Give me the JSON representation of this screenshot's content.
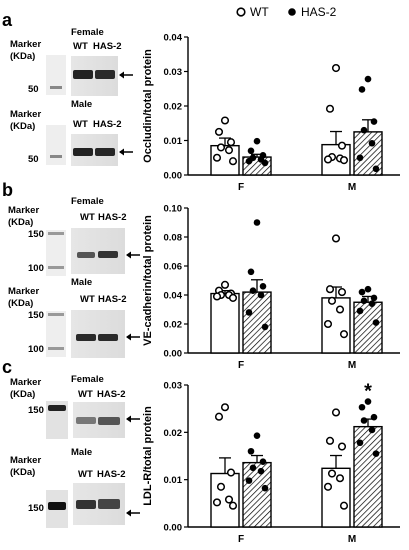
{
  "legend": {
    "items": [
      {
        "label": "WT",
        "marker": "open-circle"
      },
      {
        "label": "HAS-2",
        "marker": "filled-circle"
      }
    ]
  },
  "panels": [
    {
      "letter": "a",
      "blots": [
        {
          "group": "Female",
          "marker_label": [
            "Marker",
            "(KDa)"
          ],
          "marker_value": "50",
          "lanes": [
            "WT",
            "HAS-2"
          ]
        },
        {
          "group": "Male",
          "marker_label": [
            "Marker",
            "(KDa)"
          ],
          "marker_value": "50",
          "lanes": [
            "WT",
            "HAS-2"
          ]
        }
      ]
    },
    {
      "letter": "b",
      "blots": [
        {
          "group": "Female",
          "marker_label": [
            "Marker",
            "(KDa)"
          ],
          "marker_values": [
            "150",
            "100"
          ],
          "lanes": [
            "WT",
            "HAS-2"
          ]
        },
        {
          "group": "Male",
          "marker_label": [
            "Marker",
            "(KDa)"
          ],
          "marker_values": [
            "150",
            "100"
          ],
          "lanes": [
            "WT",
            "HAS-2"
          ]
        }
      ]
    },
    {
      "letter": "c",
      "blots": [
        {
          "group": "Female",
          "marker_label": [
            "Marker",
            "(KDa)"
          ],
          "marker_value": "150",
          "lanes": [
            "WT",
            "HAS-2"
          ]
        },
        {
          "group": "Male",
          "marker_label": [
            "Marker",
            "(KDa)"
          ],
          "marker_value": "150",
          "lanes": [
            "WT",
            "HAS-2"
          ]
        }
      ]
    }
  ],
  "chart_data": [
    {
      "type": "bar",
      "panel": "a",
      "ylabel": "Occludin/total protein",
      "ylim": [
        0,
        0.04
      ],
      "yticks": [
        "0.00",
        "0.01",
        "0.02",
        "0.03",
        "0.04"
      ],
      "categories": [
        "F",
        "M"
      ],
      "series": [
        {
          "name": "WT",
          "values": [
            0.0085,
            0.0088
          ],
          "sem": [
            0.0022,
            0.0038
          ],
          "points": [
            [
              0.0158,
              0.0125,
              0.0095,
              0.008,
              0.0072,
              0.005,
              0.004
            ],
            [
              0.031,
              0.0192,
              0.0085,
              0.0052,
              0.0048,
              0.0045,
              0.0043
            ]
          ]
        },
        {
          "name": "HAS-2",
          "values": [
            0.0052,
            0.0125
          ],
          "sem": [
            0.0008,
            0.0035
          ],
          "points": [
            [
              0.0098,
              0.007,
              0.0057,
              0.005,
              0.0045,
              0.004,
              0.0035
            ],
            [
              0.0278,
              0.0248,
              0.0155,
              0.013,
              0.0092,
              0.005,
              0.0018
            ]
          ]
        }
      ],
      "annotations": []
    },
    {
      "type": "bar",
      "panel": "b",
      "ylabel": "VE-cadherin/total protein",
      "ylim": [
        0,
        0.1
      ],
      "yticks": [
        "0.00",
        "0.02",
        "0.04",
        "0.06",
        "0.08",
        "0.10"
      ],
      "categories": [
        "F",
        "M"
      ],
      "series": [
        {
          "name": "WT",
          "values": [
            0.041,
            0.038
          ],
          "sem": [
            0.002,
            0.0075
          ],
          "points": [
            [
              0.047,
              0.043,
              0.041,
              0.04,
              0.04,
              0.039,
              0.038
            ],
            [
              0.079,
              0.044,
              0.042,
              0.036,
              0.03,
              0.02,
              0.013
            ]
          ]
        },
        {
          "name": "HAS-2",
          "values": [
            0.042,
            0.035
          ],
          "sem": [
            0.0085,
            0.004
          ],
          "points": [
            [
              0.09,
              0.056,
              0.046,
              0.043,
              0.04,
              0.028,
              0.018
            ],
            [
              0.044,
              0.042,
              0.038,
              0.036,
              0.034,
              0.029,
              0.021
            ]
          ]
        }
      ],
      "annotations": []
    },
    {
      "type": "bar",
      "panel": "c",
      "ylabel": "LDL-R/total protein",
      "ylim": [
        0,
        0.03
      ],
      "yticks": [
        "0.00",
        "0.01",
        "0.02",
        "0.03"
      ],
      "categories": [
        "F",
        "M"
      ],
      "series": [
        {
          "name": "WT",
          "values": [
            0.0113,
            0.0124
          ],
          "sem": [
            0.0033,
            0.0027
          ],
          "points": [
            [
              0.0253,
              0.0233,
              0.0115,
              0.0085,
              0.0058,
              0.0052,
              0.0045
            ],
            [
              0.0242,
              0.0182,
              0.017,
              0.0113,
              0.0103,
              0.0085,
              0.0045
            ]
          ]
        },
        {
          "name": "HAS-2",
          "values": [
            0.0136,
            0.0212
          ],
          "sem": [
            0.0015,
            0.0016
          ],
          "points": [
            [
              0.0193,
              0.016,
              0.0138,
              0.0125,
              0.0118,
              0.0098,
              0.0082
            ],
            [
              0.0265,
              0.0253,
              0.0232,
              0.0225,
              0.0205,
              0.0178,
              0.0155
            ]
          ]
        }
      ],
      "annotations": [
        {
          "category": "M",
          "series": "HAS-2",
          "text": "*"
        }
      ]
    }
  ]
}
